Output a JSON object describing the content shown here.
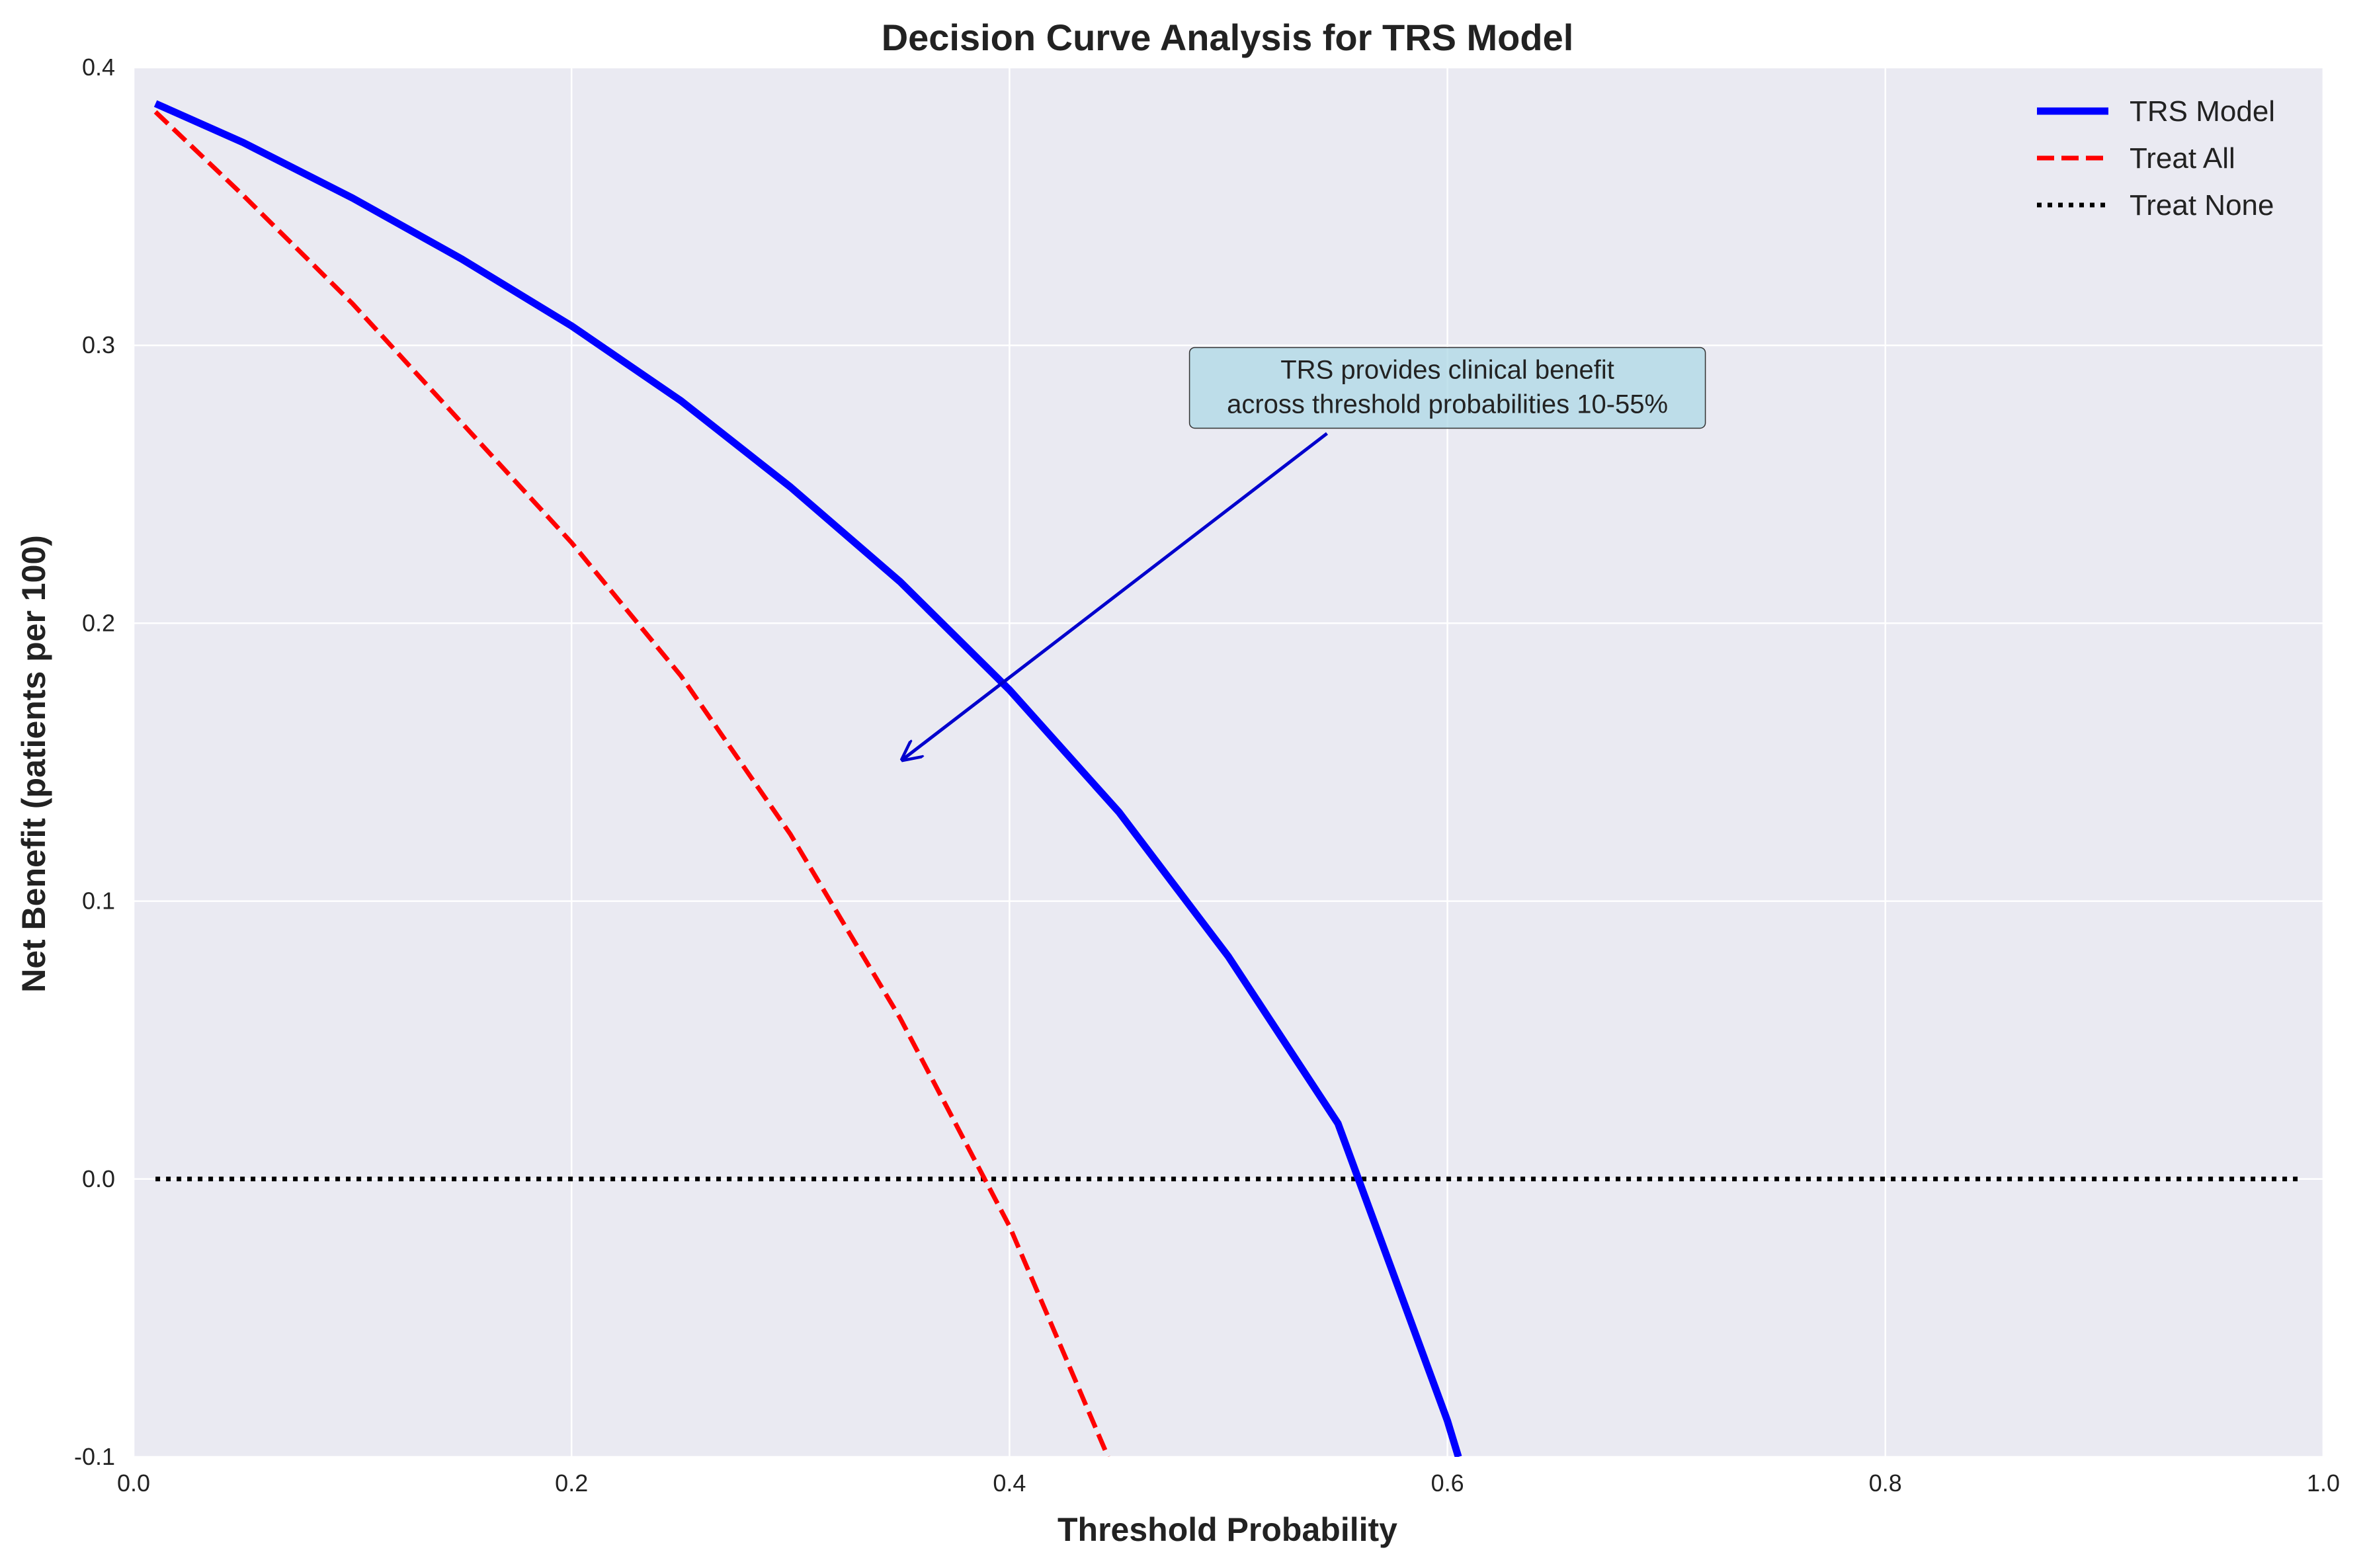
{
  "chart_data": {
    "type": "line",
    "title": "Decision Curve Analysis for TRS Model",
    "xlabel": "Threshold Probability",
    "ylabel": "Net Benefit (patients per 100)",
    "xlim": [
      0.0,
      1.0
    ],
    "ylim": [
      -0.1,
      0.4
    ],
    "xticks": [
      0.0,
      0.2,
      0.4,
      0.6,
      0.8,
      1.0
    ],
    "xtick_labels": [
      "0.0",
      "0.2",
      "0.4",
      "0.6",
      "0.8",
      "1.0"
    ],
    "yticks": [
      -0.1,
      0.0,
      0.1,
      0.2,
      0.3,
      0.4
    ],
    "ytick_labels": [
      "-0.1",
      "0.0",
      "0.1",
      "0.2",
      "0.3",
      "0.4"
    ],
    "grid": true,
    "legend_position": "top-right",
    "series": [
      {
        "name": "TRS Model",
        "color": "#0000ff",
        "style": "solid",
        "x": [
          0.01,
          0.05,
          0.1,
          0.15,
          0.2,
          0.25,
          0.3,
          0.35,
          0.4,
          0.45,
          0.5,
          0.55,
          0.6,
          0.605
        ],
        "y": [
          0.387,
          0.373,
          0.353,
          0.331,
          0.307,
          0.28,
          0.249,
          0.215,
          0.176,
          0.132,
          0.08,
          0.02,
          -0.087,
          -0.1
        ]
      },
      {
        "name": "Treat All",
        "color": "#ff0000",
        "style": "dashed",
        "x": [
          0.01,
          0.05,
          0.1,
          0.15,
          0.2,
          0.25,
          0.3,
          0.35,
          0.4,
          0.445
        ],
        "y": [
          0.384,
          0.354,
          0.315,
          0.272,
          0.229,
          0.181,
          0.124,
          0.058,
          -0.017,
          -0.1
        ]
      },
      {
        "name": "Treat None",
        "color": "#000000",
        "style": "dotted",
        "x": [
          0.01,
          0.99
        ],
        "y": [
          0.0,
          0.0
        ]
      }
    ],
    "annotations": [
      {
        "lines": [
          "TRS provides clinical benefit",
          "across threshold probabilities 10-55%"
        ],
        "text_x": 0.6,
        "text_y": 0.279,
        "arrow_to_x": 0.35,
        "arrow_to_y": 0.15,
        "box_color": "#add8e6",
        "arrow_color": "#0000cd"
      }
    ]
  }
}
